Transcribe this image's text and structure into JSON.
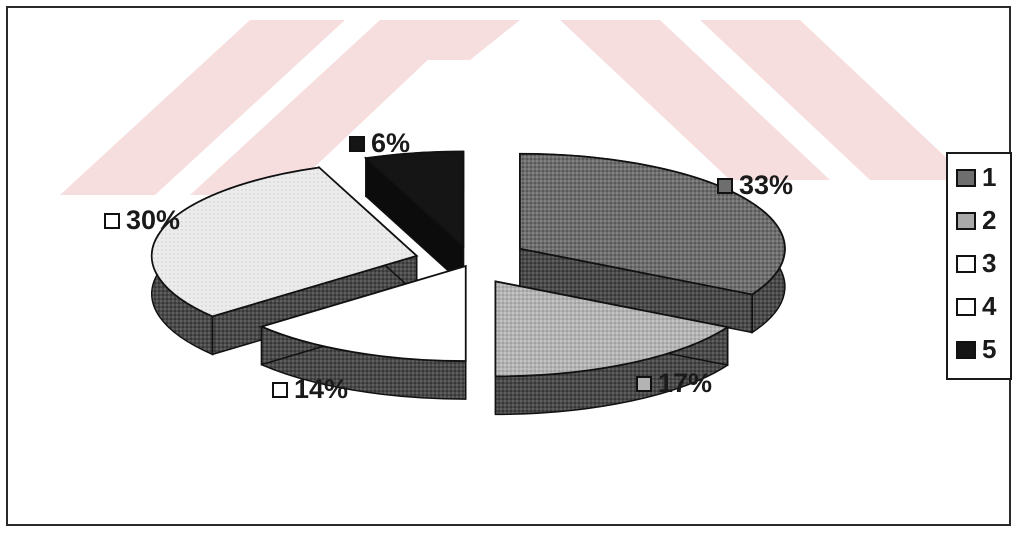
{
  "chart_data": {
    "type": "pie",
    "style": "3d-exploded",
    "categories": [
      "1",
      "2",
      "3",
      "4",
      "5"
    ],
    "values": [
      33,
      17,
      14,
      30,
      6
    ],
    "data_labels": [
      "33%",
      "17%",
      "14%",
      "30%",
      "6%"
    ],
    "colors": [
      "#6e6e6e",
      "#b3b3b3",
      "#ffffff",
      "#ececec",
      "#151515"
    ],
    "legend_position": "right",
    "title": ""
  },
  "legend": {
    "items": [
      {
        "label": "1",
        "color": "#6e6e6e"
      },
      {
        "label": "2",
        "color": "#a9a9a9"
      },
      {
        "label": "3",
        "color": "#ffffff"
      },
      {
        "label": "4",
        "color": "#ffffff"
      },
      {
        "label": "5",
        "color": "#151515"
      }
    ]
  },
  "watermark": {
    "color": "#f7dede"
  }
}
